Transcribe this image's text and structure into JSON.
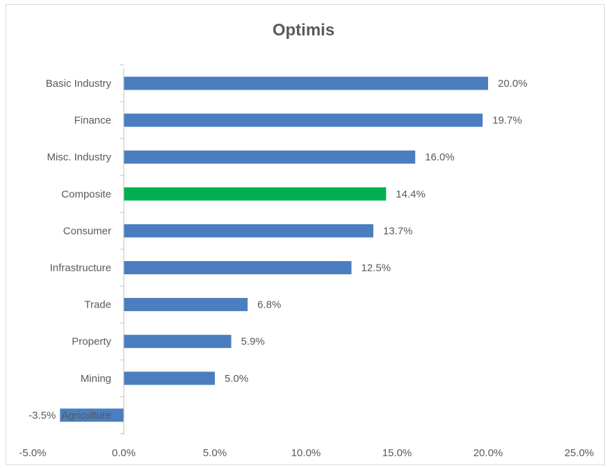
{
  "chart_data": {
    "type": "bar",
    "orientation": "horizontal",
    "title": "Optimis",
    "categories": [
      "Basic Industry",
      "Finance",
      "Misc. Industry",
      "Composite",
      "Consumer",
      "Infrastructure",
      "Trade",
      "Property",
      "Mining",
      "Agriculture"
    ],
    "values": [
      20.0,
      19.7,
      16.0,
      14.4,
      13.7,
      12.5,
      6.8,
      5.9,
      5.0,
      -3.5
    ],
    "value_labels": [
      "20.0%",
      "19.7%",
      "16.0%",
      "14.4%",
      "13.7%",
      "12.5%",
      "6.8%",
      "5.9%",
      "5.0%",
      "-3.5%"
    ],
    "highlight_category": "Composite",
    "colors": {
      "bar": "#4a7ebf",
      "highlight": "#00b050",
      "text": "#595959",
      "axis": "#bfbfbf"
    },
    "xlim": [
      -5.0,
      25.0
    ],
    "xticks": [
      -5.0,
      0.0,
      5.0,
      10.0,
      15.0,
      20.0,
      25.0
    ],
    "xtick_labels": [
      "-5.0%",
      "0.0%",
      "5.0%",
      "10.0%",
      "15.0%",
      "20.0%",
      "25.0%"
    ],
    "grid": false,
    "legend": "none"
  }
}
